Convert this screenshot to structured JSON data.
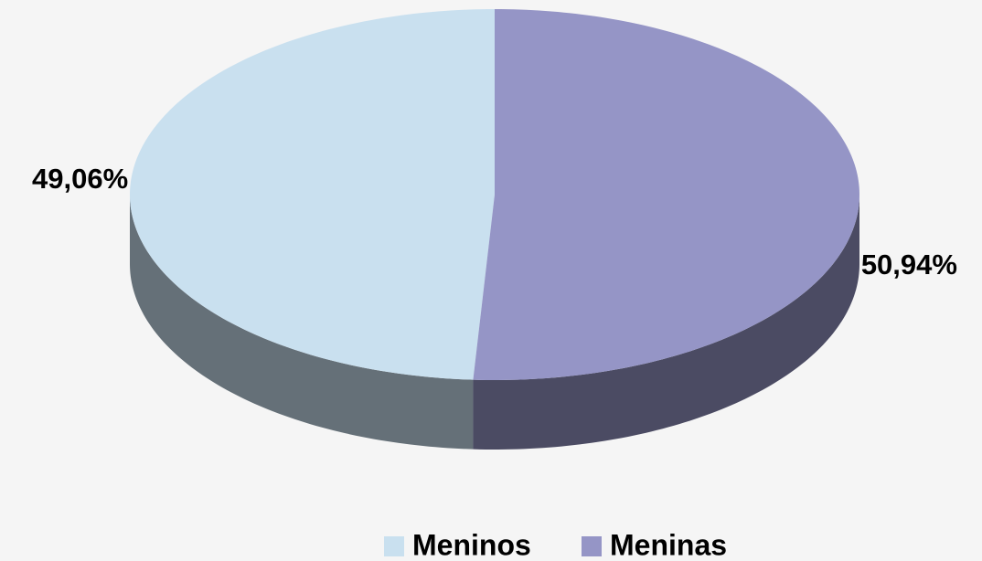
{
  "chart_data": {
    "type": "pie",
    "categories": [
      "Meninos",
      "Meninas"
    ],
    "values": [
      49.06,
      50.94
    ],
    "value_labels": [
      "49,06%",
      "50,94%"
    ],
    "colors": [
      "#c9e0ef",
      "#9595c6"
    ],
    "legend": "bottom"
  }
}
